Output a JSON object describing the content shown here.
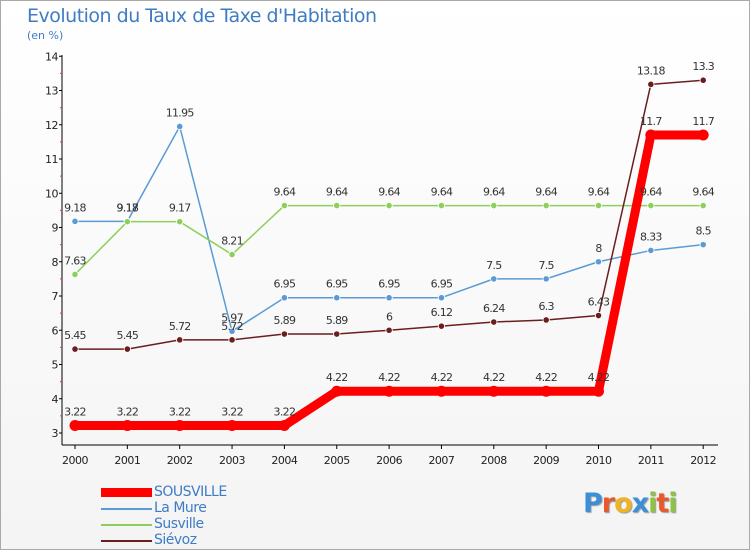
{
  "title": "Evolution du Taux de Taxe d'Habitation",
  "subtitle": "(en %)",
  "colors": {
    "title": "#3e7cc4",
    "SOUSVILLE": "#ff0000",
    "La Mure": "#5b9bd5",
    "Susville": "#8ccf5a",
    "Siévoz": "#6b1e1e"
  },
  "chart_data": {
    "type": "line",
    "title": "Evolution du Taux de Taxe d'Habitation",
    "ylabel": "(en %)",
    "xlabel": "",
    "x": [
      "2000",
      "2001",
      "2002",
      "2003",
      "2004",
      "2005",
      "2006",
      "2007",
      "2008",
      "2009",
      "2010",
      "2011",
      "2012"
    ],
    "ylim": [
      3,
      14
    ],
    "yticks": [
      "3",
      "4",
      "5",
      "6",
      "7",
      "8",
      "9",
      "10",
      "11",
      "12",
      "13",
      "14"
    ],
    "grid": false,
    "legend_position": "bottom-left",
    "series": [
      {
        "name": "SOUSVILLE",
        "values": [
          3.22,
          3.22,
          3.22,
          3.22,
          3.22,
          4.22,
          4.22,
          4.22,
          4.22,
          4.22,
          4.22,
          11.7,
          11.7
        ],
        "labels": [
          "3.22",
          "3.22",
          "3.22",
          "3.22",
          "3.22",
          "4.22",
          "4.22",
          "4.22",
          "4.22",
          "4.22",
          "4.22",
          "11.7",
          "11.7"
        ]
      },
      {
        "name": "La Mure",
        "values": [
          9.18,
          9.18,
          11.95,
          5.97,
          6.95,
          6.95,
          6.95,
          6.95,
          7.5,
          7.5,
          8,
          8.33,
          8.5
        ],
        "labels": [
          "9.18",
          "9.18",
          "11.95",
          "5.97",
          "6.95",
          "6.95",
          "6.95",
          "6.95",
          "7.5",
          "7.5",
          "8",
          "8.33",
          "8.5"
        ]
      },
      {
        "name": "Susville",
        "values": [
          7.63,
          9.17,
          9.17,
          8.21,
          9.64,
          9.64,
          9.64,
          9.64,
          9.64,
          9.64,
          9.64,
          9.64,
          9.64
        ],
        "labels": [
          "7.63",
          "9.17",
          "9.17",
          "8.21",
          "9.64",
          "9.64",
          "9.64",
          "9.64",
          "9.64",
          "9.64",
          "9.64",
          "9.64",
          "9.64"
        ]
      },
      {
        "name": "Siévoz",
        "values": [
          5.45,
          5.45,
          5.72,
          5.72,
          5.89,
          5.89,
          6,
          6.12,
          6.24,
          6.3,
          6.43,
          13.18,
          13.3
        ],
        "labels": [
          "5.45",
          "5.45",
          "5.72",
          "5.72",
          "5.89",
          "5.89",
          "6",
          "6.12",
          "6.24",
          "6.3",
          "6.43",
          "13.18",
          "13.3"
        ]
      }
    ]
  },
  "legend": [
    {
      "name": "SOUSVILLE",
      "color": "#ff0000",
      "thick": true
    },
    {
      "name": "La Mure",
      "color": "#5b9bd5",
      "thick": false
    },
    {
      "name": "Susville",
      "color": "#8ccf5a",
      "thick": false
    },
    {
      "name": "Siévoz",
      "color": "#6b1e1e",
      "thick": false
    }
  ],
  "logo": {
    "text": "Proxiti",
    "letter_colors": [
      "#3a8fd6",
      "#e8592b",
      "#f0b323",
      "#3a8fd6",
      "#8cc43f",
      "#e8592b",
      "#8cc43f"
    ]
  }
}
